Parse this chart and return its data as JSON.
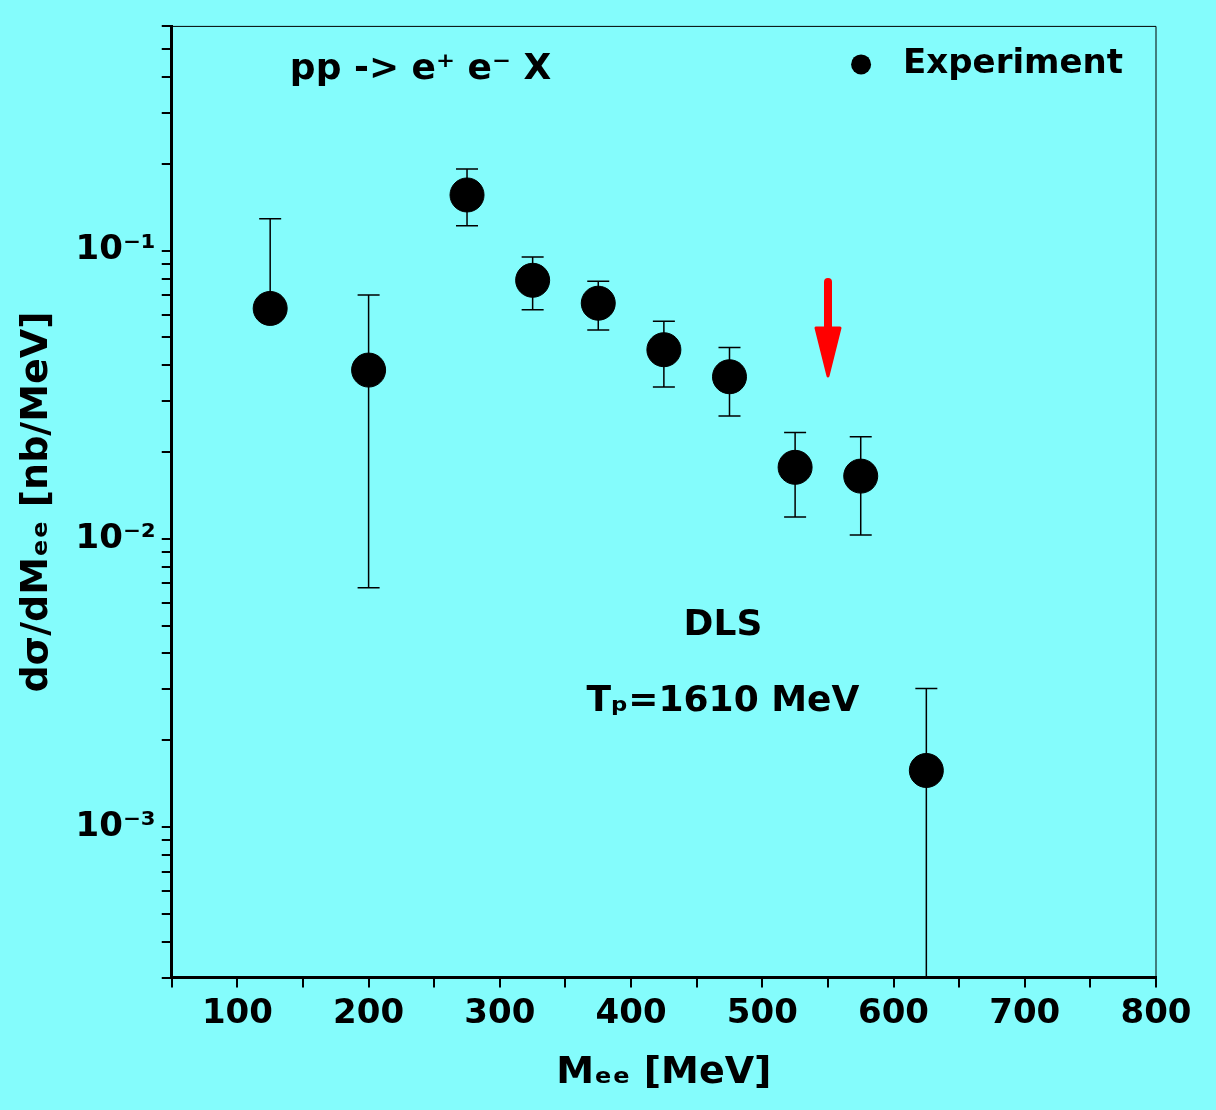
{
  "chart_data": {
    "type": "scatter",
    "xlabel": "Mₑₑ [MeV]",
    "ylabel": "dσ/dMₑₑ [nb/MeV]",
    "x": [
      125,
      200,
      275,
      325,
      375,
      425,
      475,
      525,
      575,
      625
    ],
    "series": [
      {
        "name": "Experiment",
        "color": "#000000",
        "values": [
          0.063,
          0.0385,
          0.156,
          0.0789,
          0.0657,
          0.0453,
          0.0365,
          0.0177,
          0.0165,
          0.00157
        ],
        "errors": [
          [
            0.063,
            0.129
          ],
          [
            0.00676,
            0.0701
          ],
          [
            0.122,
            0.192
          ],
          [
            0.0624,
            0.095
          ],
          [
            0.053,
            0.0783
          ],
          [
            0.0336,
            0.0569
          ],
          [
            0.0267,
            0.0461
          ],
          [
            0.0119,
            0.0234
          ],
          [
            0.0103,
            0.0226
          ],
          [
            0.0003,
            0.00302
          ]
        ]
      }
    ],
    "log": "y",
    "marker": "circle",
    "grid": false,
    "legend": "top right",
    "xlim": [
      50,
      800
    ],
    "xticks": [
      {
        "value": 50,
        "label": null
      },
      100,
      {
        "value": 150,
        "label": null
      },
      200,
      {
        "value": 250,
        "label": null
      },
      300,
      {
        "value": 350,
        "label": null
      },
      400,
      {
        "value": 450,
        "label": null
      },
      500,
      {
        "value": 550,
        "label": null
      },
      600,
      {
        "value": 650,
        "label": null
      },
      700,
      {
        "value": 750,
        "label": null
      },
      800
    ],
    "ylim": [
      0.0003,
      0.6
    ],
    "yticks": [
      {
        "value": 0.0003,
        "label": null
      },
      {
        "value": 0.0004,
        "label": null
      },
      {
        "value": 0.0005,
        "label": null
      },
      {
        "value": 0.0006,
        "label": null
      },
      {
        "value": 0.0007,
        "label": null
      },
      {
        "value": 0.0008,
        "label": null
      },
      {
        "value": 0.0009,
        "label": null
      },
      {
        "value": 0.001,
        "label": "10⁻³"
      },
      {
        "value": 0.002,
        "label": null
      },
      {
        "value": 0.003,
        "label": null
      },
      {
        "value": 0.004,
        "label": null
      },
      {
        "value": 0.005,
        "label": null
      },
      {
        "value": 0.006,
        "label": null
      },
      {
        "value": 0.007,
        "label": null
      },
      {
        "value": 0.008,
        "label": null
      },
      {
        "value": 0.009,
        "label": null
      },
      {
        "value": 0.01,
        "label": "10⁻²"
      },
      {
        "value": 0.02,
        "label": null
      },
      {
        "value": 0.03,
        "label": null
      },
      {
        "value": 0.04,
        "label": null
      },
      {
        "value": 0.05,
        "label": null
      },
      {
        "value": 0.06,
        "label": null
      },
      {
        "value": 0.07,
        "label": null
      },
      {
        "value": 0.08,
        "label": null
      },
      {
        "value": 0.09,
        "label": null
      },
      {
        "value": 0.1,
        "label": "10⁻¹"
      },
      {
        "value": 0.2,
        "label": null
      },
      {
        "value": 0.3,
        "label": null
      },
      {
        "value": 0.4,
        "label": null
      },
      {
        "value": 0.5,
        "label": null
      },
      {
        "value": 0.6,
        "label": null
      }
    ],
    "annotations": [
      "pp -> e⁺ e⁻ X",
      "DLS",
      "Tₚ=1610 MeV"
    ]
  }
}
